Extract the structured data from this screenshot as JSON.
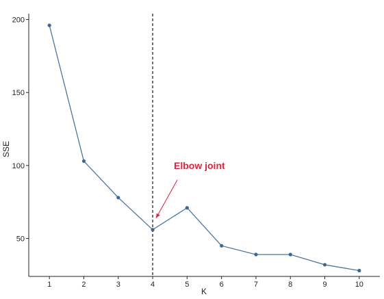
{
  "chart_data": {
    "type": "line",
    "x": [
      1,
      2,
      3,
      4,
      5,
      6,
      7,
      8,
      9,
      10
    ],
    "series": [
      {
        "values": [
          196,
          103,
          78,
          56,
          71,
          45,
          39,
          39,
          32,
          28
        ]
      }
    ],
    "xlabel": "K",
    "ylabel": "SSE",
    "xlim": [
      0.4,
      10.6
    ],
    "ylim": [
      24,
      204
    ],
    "xticks": [
      "1",
      "2",
      "3",
      "4",
      "5",
      "6",
      "7",
      "8",
      "9",
      "10"
    ],
    "yticks": [
      "50",
      "100",
      "150",
      "200"
    ],
    "vline_x": 4,
    "annotation": {
      "text": "Elbow joint",
      "target_x": 4.1,
      "target_y": 64
    },
    "grid": false,
    "colors": {
      "line": "#4a76a0",
      "point": "#3d6790",
      "annotation": "#d7263d",
      "vline": "#222222"
    }
  }
}
